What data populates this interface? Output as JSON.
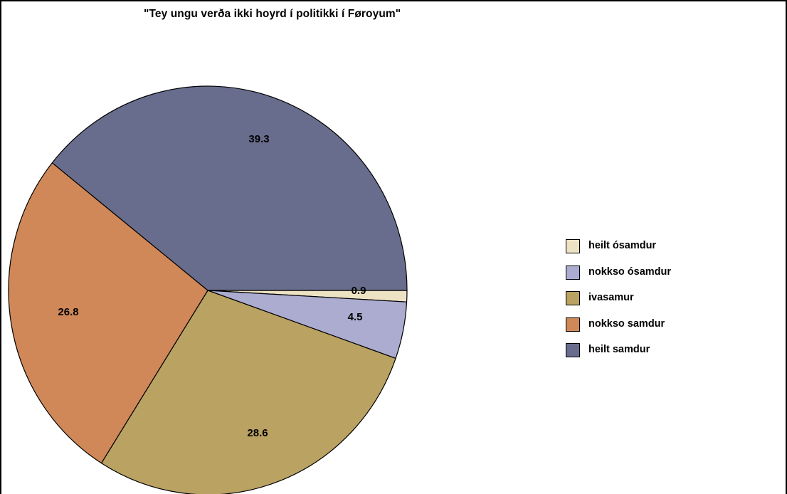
{
  "chart_data": {
    "type": "pie",
    "title": "\"Tey ungu verða ikki hoyrd í politikki í Føroyum\"",
    "categories": [
      "heilt ósamdur",
      "nokkso ósamdur",
      "ivasamur",
      "nokkso samdur",
      "heilt samdur"
    ],
    "values": [
      0.9,
      4.5,
      28.6,
      26.8,
      39.3
    ],
    "value_labels": [
      "0.9",
      "4.5",
      "28.6",
      "26.8",
      "39.3"
    ],
    "colors": [
      "#ede3c4",
      "#abacd0",
      "#baa262",
      "#d08858",
      "#696d8d"
    ],
    "start_direction": "three-o-clock, clockwise",
    "legend_position": "right"
  }
}
